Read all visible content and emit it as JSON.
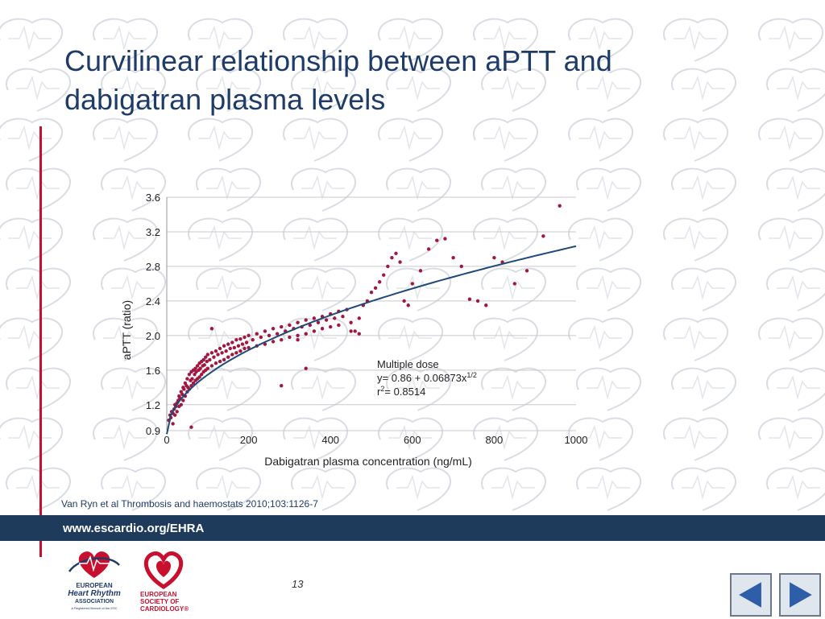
{
  "slide": {
    "title": "Curvilinear relationship between aPTT and dabigatran plasma levels",
    "citation": "Van Ryn et al Thrombosis and haemostats 2010;103:1126-7",
    "footer_url": "www.escardio.org/EHRA",
    "page_number": "13"
  },
  "logos": {
    "ehra_line1": "EUROPEAN",
    "ehra_line2": "Heart Rhythm",
    "ehra_line3": "ASSOCIATION",
    "ehra_line4": "A Registered Branch of the ESC",
    "esc_line1": "EUROPEAN",
    "esc_line2": "SOCIETY OF",
    "esc_line3": "CARDIOLOGY®"
  },
  "colors": {
    "title": "#1f3b68",
    "accent_red": "#c8102e",
    "footer": "#1f3b5c",
    "points": "#a01840",
    "fit_line": "#1f4a7a"
  },
  "icons": {
    "prev": "triangle-left-icon",
    "next": "triangle-right-icon"
  },
  "chart_data": {
    "type": "scatter",
    "xlabel": "Dabigatran plasma concentration (ng/mL)",
    "ylabel": "aPTT (ratio)",
    "xlim": [
      0,
      1000
    ],
    "ylim": [
      0.9,
      3.6
    ],
    "xticks": [
      "0",
      "200",
      "400",
      "600",
      "800",
      "1000"
    ],
    "yticks": [
      "0.9",
      "1.2",
      "1.6",
      "2.0",
      "2.4",
      "2.8",
      "3.2",
      "3.6"
    ],
    "grid": "horizontal",
    "fit": {
      "intercept": 0.86,
      "coef": 0.06873,
      "power": 0.5,
      "x_range": [
        0,
        1000
      ]
    },
    "annotation": {
      "line1": "Multiple dose",
      "line2": "y= 0.86 + 0.06873x",
      "line2_sup": "1/2",
      "line3_pre": "r",
      "line3_sup": "2",
      "line3_post": "= 0.8514"
    },
    "points": [
      [
        5,
        1.02
      ],
      [
        8,
        1.08
      ],
      [
        10,
        1.05
      ],
      [
        12,
        1.12
      ],
      [
        15,
        1.1
      ],
      [
        15,
        0.98
      ],
      [
        18,
        1.15
      ],
      [
        20,
        1.2
      ],
      [
        20,
        1.08
      ],
      [
        22,
        1.18
      ],
      [
        25,
        1.22
      ],
      [
        25,
        1.12
      ],
      [
        28,
        1.25
      ],
      [
        30,
        1.3
      ],
      [
        30,
        1.18
      ],
      [
        32,
        1.28
      ],
      [
        35,
        1.35
      ],
      [
        35,
        1.2
      ],
      [
        38,
        1.32
      ],
      [
        40,
        1.4
      ],
      [
        40,
        1.25
      ],
      [
        42,
        1.38
      ],
      [
        45,
        1.45
      ],
      [
        45,
        1.3
      ],
      [
        48,
        1.42
      ],
      [
        50,
        1.5
      ],
      [
        50,
        1.35
      ],
      [
        52,
        1.4
      ],
      [
        55,
        1.55
      ],
      [
        55,
        1.38
      ],
      [
        58,
        1.48
      ],
      [
        60,
        1.58
      ],
      [
        60,
        1.42
      ],
      [
        62,
        1.5
      ],
      [
        65,
        1.6
      ],
      [
        65,
        1.45
      ],
      [
        68,
        1.55
      ],
      [
        70,
        1.62
      ],
      [
        70,
        1.48
      ],
      [
        72,
        1.58
      ],
      [
        75,
        1.65
      ],
      [
        75,
        1.5
      ],
      [
        78,
        1.6
      ],
      [
        80,
        1.68
      ],
      [
        80,
        1.52
      ],
      [
        82,
        1.62
      ],
      [
        85,
        1.7
      ],
      [
        85,
        1.55
      ],
      [
        88,
        1.65
      ],
      [
        90,
        1.72
      ],
      [
        90,
        1.58
      ],
      [
        92,
        1.66
      ],
      [
        95,
        1.75
      ],
      [
        95,
        1.6
      ],
      [
        98,
        1.7
      ],
      [
        100,
        1.78
      ],
      [
        100,
        1.62
      ],
      [
        105,
        1.72
      ],
      [
        110,
        1.8
      ],
      [
        110,
        1.65
      ],
      [
        115,
        1.75
      ],
      [
        120,
        1.82
      ],
      [
        120,
        1.68
      ],
      [
        125,
        1.78
      ],
      [
        130,
        1.85
      ],
      [
        130,
        1.7
      ],
      [
        135,
        1.8
      ],
      [
        140,
        1.88
      ],
      [
        140,
        1.72
      ],
      [
        145,
        1.82
      ],
      [
        150,
        1.9
      ],
      [
        150,
        1.75
      ],
      [
        155,
        1.85
      ],
      [
        160,
        1.92
      ],
      [
        160,
        1.78
      ],
      [
        165,
        1.86
      ],
      [
        170,
        1.95
      ],
      [
        170,
        1.8
      ],
      [
        175,
        1.88
      ],
      [
        180,
        1.96
      ],
      [
        180,
        1.82
      ],
      [
        185,
        1.9
      ],
      [
        190,
        1.98
      ],
      [
        190,
        1.85
      ],
      [
        195,
        1.92
      ],
      [
        200,
        2.0
      ],
      [
        200,
        1.86
      ],
      [
        210,
        1.95
      ],
      [
        220,
        2.02
      ],
      [
        220,
        1.88
      ],
      [
        230,
        1.98
      ],
      [
        240,
        2.05
      ],
      [
        240,
        1.9
      ],
      [
        250,
        2.0
      ],
      [
        260,
        2.08
      ],
      [
        260,
        1.93
      ],
      [
        270,
        2.02
      ],
      [
        280,
        2.1
      ],
      [
        280,
        1.95
      ],
      [
        290,
        2.05
      ],
      [
        300,
        2.12
      ],
      [
        300,
        1.98
      ],
      [
        310,
        2.08
      ],
      [
        320,
        2.15
      ],
      [
        320,
        2.0
      ],
      [
        330,
        2.1
      ],
      [
        340,
        2.18
      ],
      [
        340,
        2.02
      ],
      [
        350,
        2.12
      ],
      [
        360,
        2.2
      ],
      [
        360,
        2.05
      ],
      [
        370,
        2.15
      ],
      [
        380,
        2.22
      ],
      [
        380,
        2.08
      ],
      [
        390,
        2.18
      ],
      [
        400,
        2.25
      ],
      [
        400,
        2.1
      ],
      [
        410,
        2.2
      ],
      [
        420,
        2.28
      ],
      [
        420,
        2.12
      ],
      [
        430,
        2.22
      ],
      [
        440,
        2.3
      ],
      [
        450,
        2.15
      ],
      [
        460,
        2.05
      ],
      [
        470,
        2.02
      ],
      [
        480,
        2.35
      ],
      [
        490,
        2.4
      ],
      [
        500,
        2.5
      ],
      [
        510,
        2.55
      ],
      [
        520,
        2.62
      ],
      [
        530,
        2.7
      ],
      [
        540,
        2.8
      ],
      [
        550,
        2.9
      ],
      [
        560,
        2.95
      ],
      [
        570,
        2.85
      ],
      [
        580,
        2.4
      ],
      [
        590,
        2.35
      ],
      [
        600,
        2.6
      ],
      [
        620,
        2.75
      ],
      [
        640,
        3.0
      ],
      [
        660,
        3.1
      ],
      [
        680,
        3.12
      ],
      [
        700,
        2.9
      ],
      [
        720,
        2.8
      ],
      [
        740,
        2.42
      ],
      [
        760,
        2.4
      ],
      [
        780,
        2.35
      ],
      [
        800,
        2.9
      ],
      [
        820,
        2.85
      ],
      [
        850,
        2.6
      ],
      [
        880,
        2.75
      ],
      [
        920,
        3.15
      ],
      [
        960,
        3.5
      ],
      [
        60,
        0.94
      ],
      [
        110,
        2.08
      ],
      [
        280,
        1.42
      ],
      [
        340,
        1.62
      ],
      [
        450,
        2.05
      ],
      [
        470,
        2.2
      ],
      [
        320,
        1.95
      ]
    ]
  }
}
